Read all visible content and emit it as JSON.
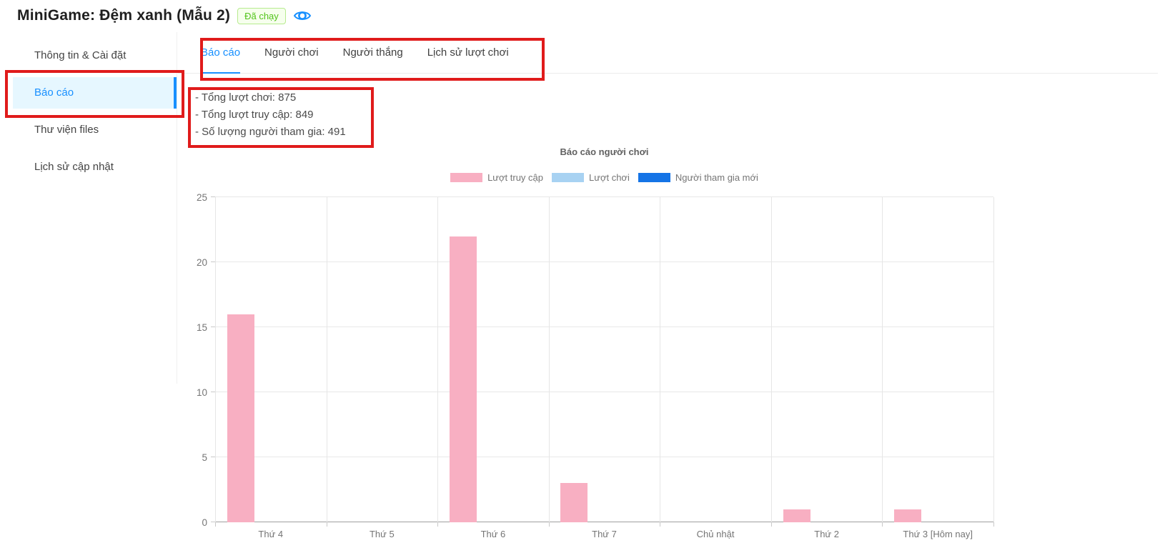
{
  "header": {
    "title": "MiniGame: Đệm xanh (Mẫu 2)",
    "status_badge": "Đã chạy"
  },
  "colors": {
    "accent_blue": "#1890ff",
    "selected_item_bg": "#e6f7ff",
    "annotation_red": "#e01b1b",
    "badge_green": "#52c41a",
    "badge_border": "#b7eb8f",
    "badge_bg": "#f6ffed"
  },
  "sidebar": {
    "items": [
      {
        "label": "Thông tin & Cài đặt",
        "active": false
      },
      {
        "label": "Báo cáo",
        "active": true
      },
      {
        "label": "Thư viện files",
        "active": false
      },
      {
        "label": "Lịch sử cập nhật",
        "active": false
      }
    ]
  },
  "tabs": [
    {
      "label": "Báo cáo",
      "active": true
    },
    {
      "label": "Người chơi",
      "active": false
    },
    {
      "label": "Người thắng",
      "active": false
    },
    {
      "label": "Lịch sử lượt chơi",
      "active": false
    }
  ],
  "stats": {
    "lines": [
      "- Tổng lượt chơi: 875",
      "- Tổng lượt truy cập: 849",
      "- Số lượng người tham gia: 491"
    ]
  },
  "chart_data": {
    "type": "bar",
    "title": "Báo cáo người chơi",
    "categories": [
      "Thứ 4",
      "Thứ 5",
      "Thứ 6",
      "Thứ 7",
      "Chủ nhật",
      "Thứ 2",
      "Thứ 3 [Hôm nay]"
    ],
    "series": [
      {
        "name": "Lượt truy cập",
        "color": "#f8afc2",
        "values": [
          16,
          0,
          22,
          3,
          0,
          1,
          1
        ]
      },
      {
        "name": "Lượt chơi",
        "color": "#a8d2f2",
        "values": [
          0,
          0,
          0,
          0,
          0,
          0,
          0
        ]
      },
      {
        "name": "Người tham gia mới",
        "color": "#1574e6",
        "values": [
          0,
          0,
          0,
          0,
          0,
          0,
          0
        ]
      }
    ],
    "ylim": [
      0,
      25
    ],
    "yticks": [
      0,
      5,
      10,
      15,
      20,
      25
    ],
    "grid": true,
    "legend_position": "top",
    "xlabel": "",
    "ylabel": ""
  }
}
